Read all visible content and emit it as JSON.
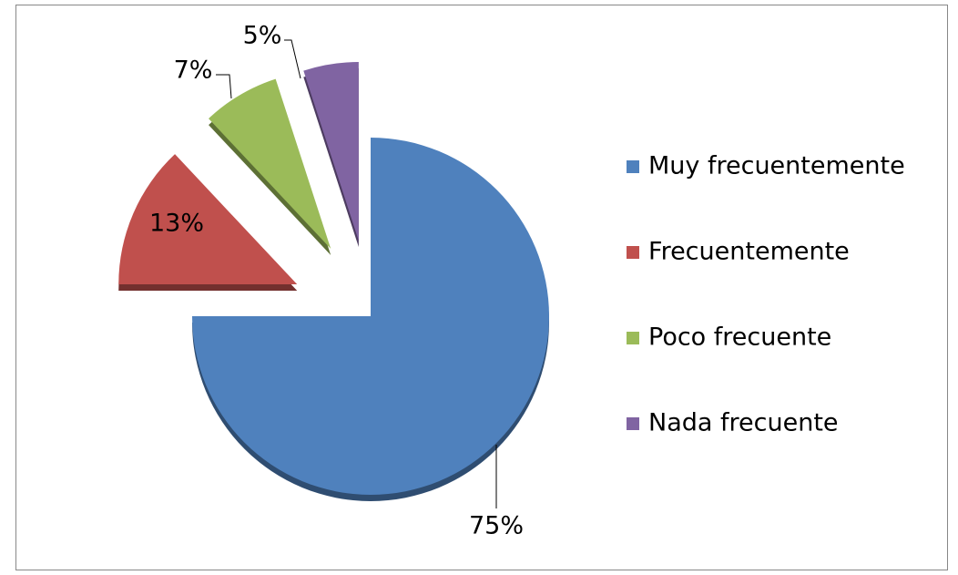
{
  "chart_data": {
    "type": "pie",
    "categories": [
      "Muy frecuentemente",
      "Frecuentemente",
      "Poco frecuente",
      "Nada frecuente"
    ],
    "values": [
      75,
      13,
      7,
      5
    ],
    "value_labels": [
      "75%",
      "13%",
      "7%",
      "5%"
    ],
    "colors": [
      "#4f81bd",
      "#c0504d",
      "#9bbb59",
      "#8064a2"
    ],
    "legend": "right"
  }
}
